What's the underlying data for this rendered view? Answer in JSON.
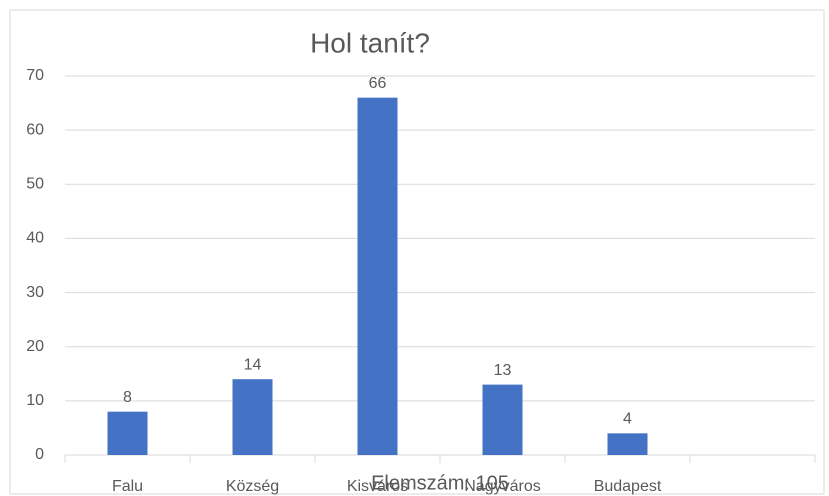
{
  "chart_data": {
    "type": "bar",
    "title": "Hol tanít?",
    "categories": [
      "Falu",
      "Község",
      "Kisváros",
      "Nagyváros",
      "Budapest",
      null
    ],
    "values": [
      8,
      14,
      66,
      13,
      4,
      null
    ],
    "color": "#4472c4",
    "ylim": [
      0,
      70
    ],
    "yticks": [
      0,
      10,
      20,
      30,
      40,
      50,
      60,
      70
    ],
    "grid": true,
    "annotation": "Elemszám: 105"
  }
}
